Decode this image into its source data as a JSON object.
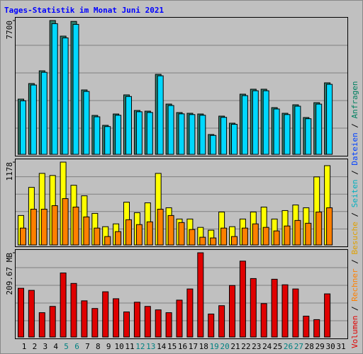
{
  "chart_data": [
    {
      "type": "bar",
      "title": "Tages-Statistik im Monat Juni 2021",
      "ylim": [
        0,
        7700
      ],
      "yticks": [
        7700
      ],
      "series": [
        {
          "color": "#2f7f6f",
          "values": [
            3178,
            4074,
            4807,
            7700,
            6803,
            7650,
            3707,
            2240,
            1670,
            2322,
            3422,
            2526,
            2485,
            4604,
            2893,
            2404,
            2363,
            2322,
            1141,
            2200,
            1793,
            3463,
            3748,
            3748,
            2689,
            2363,
            2852,
            2119,
            2974,
            4115,
            null
          ]
        },
        {
          "color": "#00d8ff",
          "values": [
            3080,
            3990,
            4720,
            7520,
            6700,
            7480,
            3620,
            2160,
            1600,
            2250,
            3330,
            2450,
            2410,
            4520,
            2810,
            2330,
            2290,
            2250,
            1090,
            2130,
            1730,
            3380,
            3660,
            3660,
            2610,
            2290,
            2770,
            2050,
            2890,
            4030,
            null
          ]
        }
      ],
      "legend": [
        {
          "name": "Volumen",
          "color": "#e00000"
        },
        {
          "name": "Rechner",
          "color": "#ff8000"
        },
        {
          "name": "Besuche",
          "color": "#e0a000"
        },
        {
          "name": "Seiten",
          "color": "#00b0c0"
        },
        {
          "name": "Dateien",
          "color": "#0040ff"
        },
        {
          "name": "Anfragen",
          "color": "#008060"
        }
      ],
      "legend_separator": " / "
    },
    {
      "type": "bar",
      "ylim": [
        0,
        1178
      ],
      "yticks": [
        1178
      ],
      "series": [
        {
          "color": "#ffff00",
          "values": [
            419,
            819,
            1018,
            988,
            1178,
            849,
            699,
            449,
            260,
            300,
            609,
            459,
            599,
            1018,
            529,
            369,
            369,
            250,
            210,
            469,
            260,
            369,
            469,
            539,
            369,
            489,
            569,
            529,
            968,
            1128,
            null
          ]
        },
        {
          "color": "#ff8000",
          "values": [
            240,
            509,
            509,
            559,
            659,
            539,
            399,
            240,
            120,
            190,
            359,
            290,
            329,
            509,
            419,
            319,
            220,
            110,
            100,
            240,
            120,
            240,
            300,
            250,
            200,
            270,
            349,
            309,
            469,
            529,
            null
          ]
        }
      ]
    },
    {
      "type": "bar",
      "ylim": [
        0,
        209.67
      ],
      "yticks": [
        {
          "value": 209.67,
          "label": "209.67 MB"
        }
      ],
      "series": [
        {
          "color": "#e00000",
          "values": [
            121.3,
            116.1,
            60.6,
            76.2,
            159.4,
            133.4,
            90.1,
            71.0,
            112.6,
            95.3,
            62.4,
            86.6,
            76.2,
            67.6,
            60.6,
            91.8,
            119.6,
            209.67,
            57.2,
            78.0,
            128.2,
            188.9,
            145.5,
            83.2,
            143.8,
            130.0,
            119.6,
            52.0,
            43.3,
            107.4,
            null
          ]
        }
      ],
      "categories": [
        "1",
        "2",
        "3",
        "4",
        "5",
        "6",
        "7",
        "8",
        "9",
        "10",
        "11",
        "12",
        "13",
        "14",
        "15",
        "16",
        "17",
        "18",
        "19",
        "20",
        "21",
        "22",
        "23",
        "24",
        "25",
        "26",
        "27",
        "28",
        "29",
        "30",
        "31"
      ],
      "category_colors": [
        "#000",
        "#000",
        "#000",
        "#000",
        "#008080",
        "#008080",
        "#000",
        "#000",
        "#000",
        "#000",
        "#000",
        "#008080",
        "#008080",
        "#000",
        "#000",
        "#000",
        "#000",
        "#000",
        "#008080",
        "#008080",
        "#000",
        "#000",
        "#000",
        "#000",
        "#000",
        "#008080",
        "#008080",
        "#000",
        "#000",
        "#000",
        "#000"
      ]
    }
  ]
}
